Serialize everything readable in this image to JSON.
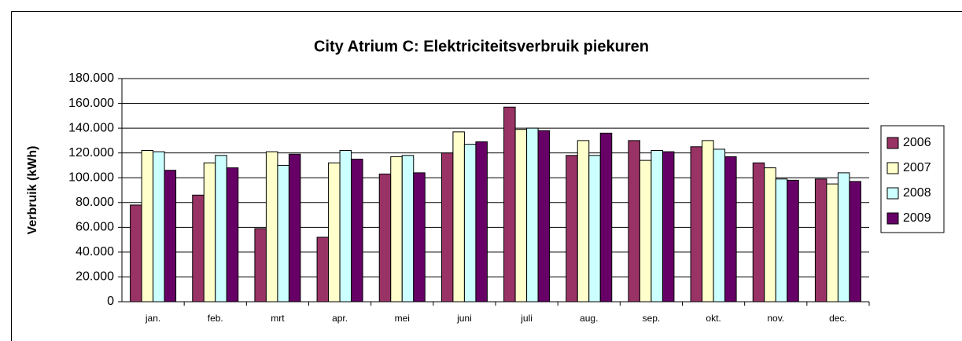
{
  "chart_data": {
    "type": "bar",
    "title": "City Atrium C: Elektriciteitsverbruik piekuren",
    "y_label": "Verbruik (kWh)",
    "categories": [
      "jan.",
      "feb.",
      "mrt",
      "apr.",
      "mei",
      "juni",
      "juli",
      "aug.",
      "sep.",
      "okt.",
      "nov.",
      "dec."
    ],
    "series": [
      {
        "name": "2006",
        "color": "#993366",
        "values": [
          78000,
          86000,
          59000,
          52000,
          103000,
          120000,
          157000,
          118000,
          130000,
          125000,
          112000,
          99000
        ]
      },
      {
        "name": "2007",
        "color": "#ffffcc",
        "values": [
          122000,
          112000,
          121000,
          112000,
          117000,
          137000,
          139000,
          130000,
          114000,
          130000,
          108000,
          95000
        ]
      },
      {
        "name": "2008",
        "color": "#ccffff",
        "values": [
          121000,
          118000,
          110000,
          122000,
          118000,
          127000,
          140000,
          118000,
          122000,
          123000,
          99000,
          104000
        ]
      },
      {
        "name": "2009",
        "color": "#660066",
        "values": [
          106000,
          108000,
          119000,
          115000,
          104000,
          129000,
          138000,
          136000,
          121000,
          117000,
          98000,
          97000
        ]
      }
    ],
    "ylim": [
      0,
      180000
    ],
    "yticks": [
      0,
      {
        "value": 20000,
        "label": "20.000"
      },
      {
        "value": 40000,
        "label": "40.000"
      },
      {
        "value": 60000,
        "label": "60.000"
      },
      {
        "value": 80000,
        "label": "80.000"
      },
      {
        "value": 100000,
        "label": "100.000"
      },
      {
        "value": 120000,
        "label": "120.000"
      },
      {
        "value": 140000,
        "label": "140.000"
      },
      {
        "value": 160000,
        "label": "160.000"
      },
      {
        "value": 180000,
        "label": "180.000"
      }
    ],
    "grid": true,
    "legend": "right"
  }
}
